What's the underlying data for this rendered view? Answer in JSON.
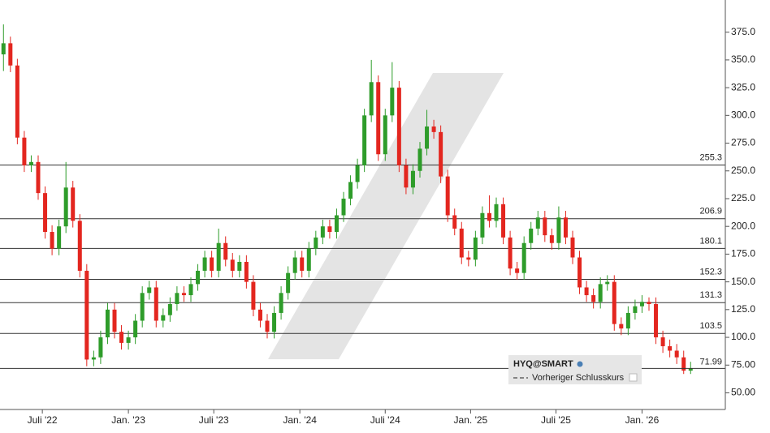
{
  "chart_data": {
    "type": "candlestick",
    "x": [
      0,
      1,
      2,
      3,
      4,
      5,
      6,
      7,
      8,
      9,
      10,
      11,
      12,
      13,
      14,
      15,
      16,
      17,
      18,
      19,
      20,
      21,
      22,
      23,
      24,
      25,
      26,
      27,
      28,
      29,
      30,
      31,
      32,
      33,
      34,
      35,
      36,
      37,
      38,
      39,
      40,
      41,
      42,
      43,
      44,
      45,
      46,
      47,
      48,
      49,
      50,
      51,
      52,
      53,
      54,
      55,
      56,
      57,
      58,
      59,
      60,
      61,
      62,
      63,
      64,
      65,
      66,
      67,
      68,
      69,
      70,
      71,
      72,
      73,
      74,
      75,
      76,
      77,
      78,
      79,
      80,
      81,
      82,
      83,
      84,
      85,
      86,
      87,
      88,
      89,
      90,
      91,
      92,
      93,
      94,
      95,
      96,
      97,
      98,
      99
    ],
    "open": [
      355,
      365,
      345,
      280,
      255,
      258,
      230,
      195,
      180,
      200,
      235,
      205,
      160,
      80,
      82,
      100,
      125,
      105,
      95,
      100,
      115,
      140,
      145,
      115,
      120,
      130,
      140,
      138,
      148,
      160,
      172,
      160,
      185,
      170,
      160,
      168,
      150,
      125,
      115,
      105,
      122,
      140,
      158,
      172,
      160,
      180,
      190,
      200,
      195,
      210,
      225,
      240,
      255,
      300,
      330,
      265,
      300,
      325,
      255,
      235,
      250,
      270,
      290,
      285,
      245,
      210,
      198,
      172,
      170,
      190,
      212,
      205,
      220,
      190,
      162,
      158,
      185,
      198,
      208,
      192,
      185,
      208,
      190,
      172,
      145,
      138,
      132,
      148,
      150,
      112,
      108,
      122,
      128,
      132,
      130,
      100,
      92,
      88,
      82,
      70
    ],
    "high": [
      382,
      371,
      351,
      286,
      264,
      264,
      236,
      201,
      206,
      258,
      241,
      211,
      166,
      88,
      106,
      131,
      131,
      111,
      106,
      121,
      146,
      151,
      151,
      126,
      136,
      146,
      146,
      154,
      166,
      178,
      178,
      198,
      191,
      176,
      174,
      174,
      156,
      131,
      121,
      128,
      146,
      164,
      178,
      178,
      186,
      196,
      206,
      206,
      216,
      231,
      246,
      261,
      306,
      350,
      336,
      306,
      348,
      331,
      261,
      256,
      276,
      305,
      296,
      291,
      251,
      216,
      204,
      178,
      196,
      218,
      228,
      226,
      226,
      196,
      168,
      191,
      204,
      214,
      214,
      198,
      218,
      214,
      196,
      178,
      151,
      144,
      154,
      156,
      156,
      118,
      128,
      134,
      138,
      136,
      136,
      106,
      98,
      94,
      88,
      78
    ],
    "low": [
      340,
      339,
      274,
      249,
      249,
      224,
      189,
      174,
      174,
      194,
      199,
      154,
      74,
      74,
      76,
      94,
      99,
      89,
      89,
      94,
      109,
      134,
      109,
      109,
      114,
      124,
      132,
      132,
      142,
      154,
      154,
      154,
      164,
      154,
      154,
      144,
      119,
      109,
      99,
      99,
      116,
      134,
      152,
      154,
      154,
      174,
      184,
      189,
      189,
      204,
      219,
      234,
      249,
      294,
      259,
      259,
      294,
      249,
      229,
      229,
      244,
      264,
      279,
      239,
      204,
      192,
      166,
      164,
      164,
      184,
      199,
      199,
      184,
      156,
      152,
      152,
      179,
      192,
      186,
      179,
      179,
      184,
      166,
      139,
      132,
      126,
      126,
      142,
      106,
      102,
      102,
      116,
      122,
      124,
      94,
      86,
      82,
      76,
      67,
      67
    ],
    "close": [
      365,
      345,
      280,
      255,
      258,
      230,
      195,
      180,
      200,
      235,
      205,
      160,
      80,
      82,
      100,
      125,
      105,
      95,
      100,
      115,
      140,
      145,
      115,
      120,
      130,
      140,
      138,
      148,
      160,
      172,
      160,
      185,
      170,
      160,
      168,
      150,
      125,
      115,
      105,
      122,
      140,
      158,
      172,
      160,
      180,
      190,
      200,
      195,
      210,
      225,
      240,
      255,
      300,
      330,
      265,
      300,
      325,
      255,
      235,
      250,
      270,
      290,
      285,
      245,
      210,
      198,
      172,
      170,
      190,
      212,
      205,
      220,
      190,
      162,
      158,
      185,
      198,
      208,
      192,
      185,
      208,
      190,
      172,
      145,
      138,
      132,
      148,
      150,
      112,
      108,
      122,
      128,
      132,
      130,
      100,
      92,
      88,
      82,
      70,
      71.99
    ],
    "up_color": "#2e9c2a",
    "down_color": "#e3261f",
    "xlim": [
      -0.5,
      104
    ],
    "xticks": [
      {
        "value": 5.6,
        "label": "Juli '22"
      },
      {
        "value": 18,
        "label": "Jan. '23"
      },
      {
        "value": 30.3,
        "label": "Juli '23"
      },
      {
        "value": 42.7,
        "label": "Jan. '24"
      },
      {
        "value": 55,
        "label": "Juli '24"
      },
      {
        "value": 67.3,
        "label": "Jan. '25"
      },
      {
        "value": 79.6,
        "label": "Juli '25"
      },
      {
        "value": 92,
        "label": "Jan. '26"
      }
    ],
    "ylim": [
      35,
      404
    ],
    "yticks": [
      {
        "value": 50,
        "label": "50.00"
      },
      {
        "value": 75,
        "label": "75.00"
      },
      {
        "value": 100,
        "label": "100.0"
      },
      {
        "value": 125,
        "label": "125.0"
      },
      {
        "value": 150,
        "label": "150.0"
      },
      {
        "value": 175,
        "label": "175.0"
      },
      {
        "value": 200,
        "label": "200.0"
      },
      {
        "value": 225,
        "label": "225.0"
      },
      {
        "value": 250,
        "label": "250.0"
      },
      {
        "value": 275,
        "label": "275.0"
      },
      {
        "value": 300,
        "label": "300.0"
      },
      {
        "value": 325,
        "label": "325.0"
      },
      {
        "value": 350,
        "label": "350.0"
      },
      {
        "value": 375,
        "label": "375.0"
      }
    ],
    "levels": [
      255.3,
      206.9,
      180.1,
      152.3,
      131.3,
      103.5
    ],
    "last_price": 71.99,
    "legend": {
      "title": "HYQ@SMART",
      "entry": "Vorheriger Schlusskurs"
    }
  }
}
